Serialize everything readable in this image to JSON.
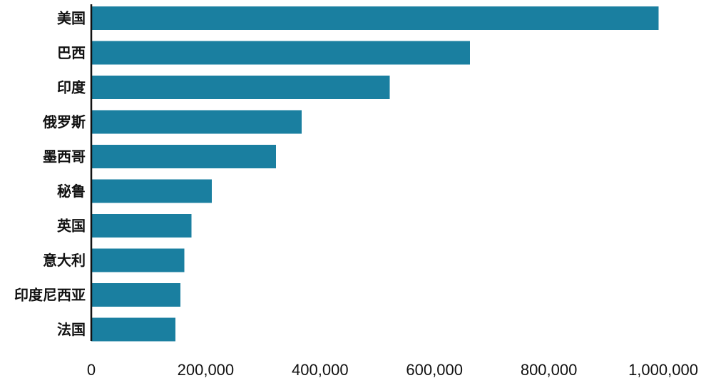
{
  "chart_data": {
    "type": "bar",
    "orientation": "horizontal",
    "title": "",
    "xlabel": "",
    "ylabel": "",
    "categories": [
      "美国",
      "巴西",
      "印度",
      "俄罗斯",
      "墨西哥",
      "秘鲁",
      "英国",
      "意大利",
      "印度尼西亚",
      "法国"
    ],
    "values": [
      992000,
      662000,
      522000,
      368000,
      323000,
      211000,
      175000,
      163000,
      156000,
      147000
    ],
    "xlim": [
      0,
      1050000
    ],
    "xticks": [
      0,
      200000,
      400000,
      600000,
      800000,
      1000000
    ],
    "xtick_labels": [
      "0",
      "200,000",
      "400,000",
      "600,000",
      "800,000",
      "1,000,000"
    ],
    "grid": false,
    "legend": "none",
    "bar_color": "#1a7fa0",
    "axis_color": "#111111"
  }
}
